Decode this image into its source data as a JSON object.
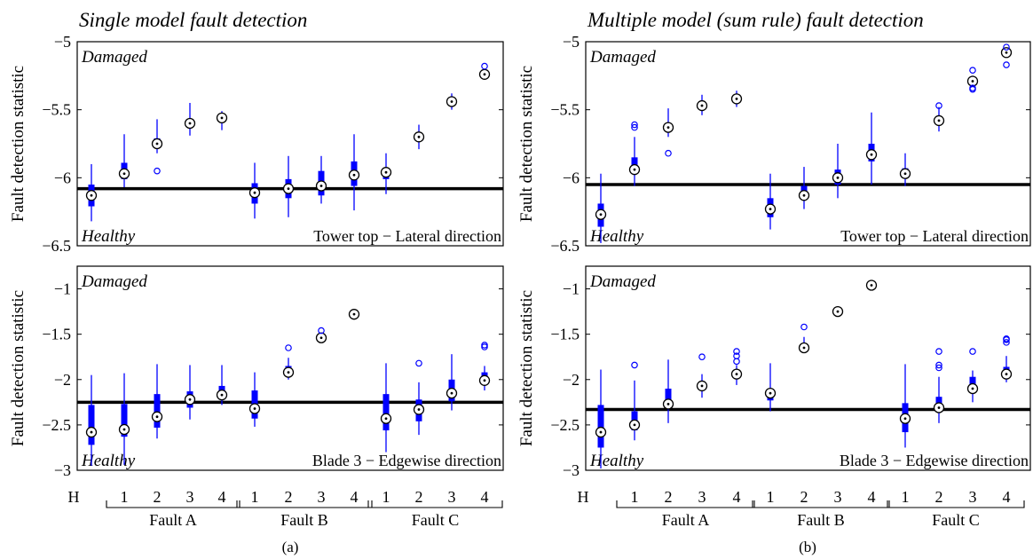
{
  "chart_data": [
    {
      "type": "boxplot",
      "title": "Single model fault detection",
      "ylabel": "Fault detection statistic",
      "corner_top": "Damaged",
      "corner_bottom": "Healthy",
      "panel_label": "Tower top − Lateral direction",
      "ylim": [
        -6.5,
        -5.0
      ],
      "yticks": [
        -6.5,
        -6,
        -5.5,
        -5
      ],
      "ytick_labels": [
        "-6.5",
        "-6",
        "-5.5",
        "-5"
      ],
      "threshold": -6.08,
      "boxes": [
        {
          "med": -6.13,
          "q1": -6.21,
          "q3": -6.05,
          "lo": -6.32,
          "hi": -5.9,
          "out": []
        },
        {
          "med": -5.97,
          "q1": -6.01,
          "q3": -5.89,
          "lo": -6.07,
          "hi": -5.68,
          "out": []
        },
        {
          "med": -5.75,
          "q1": -5.78,
          "q3": -5.71,
          "lo": -5.82,
          "hi": -5.57,
          "out": [
            -5.95
          ]
        },
        {
          "med": -5.6,
          "q1": -5.63,
          "q3": -5.58,
          "lo": -5.69,
          "hi": -5.45,
          "out": []
        },
        {
          "med": -5.56,
          "q1": -5.58,
          "q3": -5.55,
          "lo": -5.65,
          "hi": -5.51,
          "out": []
        },
        {
          "med": -6.11,
          "q1": -6.19,
          "q3": -6.04,
          "lo": -6.3,
          "hi": -5.89,
          "out": []
        },
        {
          "med": -6.08,
          "q1": -6.15,
          "q3": -6.01,
          "lo": -6.29,
          "hi": -5.84,
          "out": []
        },
        {
          "med": -6.06,
          "q1": -6.13,
          "q3": -5.95,
          "lo": -6.19,
          "hi": -5.84,
          "out": []
        },
        {
          "med": -5.98,
          "q1": -6.06,
          "q3": -5.88,
          "lo": -6.24,
          "hi": -5.68,
          "out": []
        },
        {
          "med": -5.96,
          "q1": -6.01,
          "q3": -5.94,
          "lo": -6.12,
          "hi": -5.82,
          "out": []
        },
        {
          "med": -5.7,
          "q1": -5.71,
          "q3": -5.69,
          "lo": -5.79,
          "hi": -5.61,
          "out": []
        },
        {
          "med": -5.44,
          "q1": -5.45,
          "q3": -5.43,
          "lo": -5.5,
          "hi": -5.38,
          "out": []
        },
        {
          "med": -5.24,
          "q1": -5.25,
          "q3": -5.23,
          "lo": -5.27,
          "hi": -5.2,
          "out": [
            -5.18
          ]
        }
      ]
    },
    {
      "type": "boxplot",
      "title": "",
      "ylabel": "Fault detection statistic",
      "corner_top": "Damaged",
      "corner_bottom": "Healthy",
      "panel_label": "Blade 3 − Edgewise direction",
      "ylim": [
        -3.0,
        -0.75
      ],
      "yticks": [
        -3,
        -2.5,
        -2,
        -1.5,
        -1
      ],
      "ytick_labels": [
        "-3",
        "-2.5",
        "-2",
        "-1.5",
        "-1"
      ],
      "threshold": -2.25,
      "boxes": [
        {
          "med": -2.58,
          "q1": -2.72,
          "q3": -2.28,
          "lo": -2.95,
          "hi": -1.95,
          "out": []
        },
        {
          "med": -2.55,
          "q1": -2.63,
          "q3": -2.27,
          "lo": -2.94,
          "hi": -1.93,
          "out": []
        },
        {
          "med": -2.41,
          "q1": -2.53,
          "q3": -2.16,
          "lo": -2.65,
          "hi": -1.83,
          "out": []
        },
        {
          "med": -2.22,
          "q1": -2.31,
          "q3": -2.13,
          "lo": -2.44,
          "hi": -1.84,
          "out": []
        },
        {
          "med": -2.17,
          "q1": -2.22,
          "q3": -2.07,
          "lo": -2.28,
          "hi": -1.84,
          "out": []
        },
        {
          "med": -2.32,
          "q1": -2.43,
          "q3": -2.12,
          "lo": -2.52,
          "hi": -1.92,
          "out": []
        },
        {
          "med": -1.92,
          "q1": -1.96,
          "q3": -1.85,
          "lo": -2.0,
          "hi": -1.76,
          "out": [
            -1.65
          ]
        },
        {
          "med": -1.54,
          "q1": -1.55,
          "q3": -1.53,
          "lo": -1.56,
          "hi": -1.52,
          "out": [
            -1.46
          ]
        },
        {
          "med": -1.28,
          "q1": -1.29,
          "q3": -1.27,
          "lo": -1.3,
          "hi": -1.26,
          "out": []
        },
        {
          "med": -2.43,
          "q1": -2.56,
          "q3": -2.16,
          "lo": -2.8,
          "hi": -1.82,
          "out": []
        },
        {
          "med": -2.33,
          "q1": -2.46,
          "q3": -2.22,
          "lo": -2.61,
          "hi": -2.03,
          "out": [
            -1.82
          ]
        },
        {
          "med": -2.15,
          "q1": -2.24,
          "q3": -2.0,
          "lo": -2.34,
          "hi": -1.72,
          "out": []
        },
        {
          "med": -2.01,
          "q1": -2.03,
          "q3": -1.92,
          "lo": -2.12,
          "hi": -1.85,
          "out": [
            -1.62,
            -1.64
          ]
        }
      ]
    },
    {
      "type": "boxplot",
      "title": "Multiple model (sum rule) fault detection",
      "ylabel": "Fault detection statistic",
      "corner_top": "Damaged",
      "corner_bottom": "Healthy",
      "panel_label": "Tower top − Lateral direction",
      "ylim": [
        -6.5,
        -5.0
      ],
      "yticks": [
        -6.5,
        -6,
        -5.5,
        -5
      ],
      "ytick_labels": [
        "-6.5",
        "-6",
        "-5.5",
        "-5"
      ],
      "threshold": -6.05,
      "boxes": [
        {
          "med": -6.27,
          "q1": -6.36,
          "q3": -6.19,
          "lo": -6.48,
          "hi": -5.97,
          "out": []
        },
        {
          "med": -5.94,
          "q1": -5.97,
          "q3": -5.85,
          "lo": -6.06,
          "hi": -5.7,
          "out": [
            -5.61,
            -5.63
          ]
        },
        {
          "med": -5.63,
          "q1": -5.66,
          "q3": -5.6,
          "lo": -5.7,
          "hi": -5.49,
          "out": [
            -5.82
          ]
        },
        {
          "med": -5.47,
          "q1": -5.49,
          "q3": -5.45,
          "lo": -5.54,
          "hi": -5.39,
          "out": []
        },
        {
          "med": -5.42,
          "q1": -5.44,
          "q3": -5.41,
          "lo": -5.48,
          "hi": -5.36,
          "out": []
        },
        {
          "med": -6.23,
          "q1": -6.29,
          "q3": -6.15,
          "lo": -6.38,
          "hi": -5.97,
          "out": []
        },
        {
          "med": -6.13,
          "q1": -6.15,
          "q3": -6.06,
          "lo": -6.23,
          "hi": -5.92,
          "out": []
        },
        {
          "med": -6.0,
          "q1": -6.05,
          "q3": -5.94,
          "lo": -6.15,
          "hi": -5.75,
          "out": []
        },
        {
          "med": -5.83,
          "q1": -5.88,
          "q3": -5.75,
          "lo": -6.05,
          "hi": -5.52,
          "out": []
        },
        {
          "med": -5.97,
          "q1": -6.0,
          "q3": -5.93,
          "lo": -6.06,
          "hi": -5.82,
          "out": []
        },
        {
          "med": -5.58,
          "q1": -5.6,
          "q3": -5.55,
          "lo": -5.66,
          "hi": -5.48,
          "out": [
            -5.47
          ]
        },
        {
          "med": -5.29,
          "q1": -5.31,
          "q3": -5.27,
          "lo": -5.33,
          "hi": -5.25,
          "out": [
            -5.21,
            -5.34,
            -5.35
          ]
        },
        {
          "med": -5.08,
          "q1": -5.09,
          "q3": -5.07,
          "lo": -5.1,
          "hi": -5.06,
          "out": [
            -5.04,
            -5.17
          ]
        }
      ]
    },
    {
      "type": "boxplot",
      "title": "",
      "ylabel": "Fault detection statistic",
      "corner_top": "Damaged",
      "corner_bottom": "Healthy",
      "panel_label": "Blade 3 − Edgewise direction",
      "ylim": [
        -3.0,
        -0.75
      ],
      "yticks": [
        -3,
        -2.5,
        -2,
        -1.5,
        -1
      ],
      "ytick_labels": [
        "-3",
        "-2.5",
        "-2",
        "-1.5",
        "-1"
      ],
      "threshold": -2.33,
      "boxes": [
        {
          "med": -2.58,
          "q1": -2.75,
          "q3": -2.28,
          "lo": -2.98,
          "hi": -1.89,
          "out": []
        },
        {
          "med": -2.5,
          "q1": -2.56,
          "q3": -2.35,
          "lo": -2.67,
          "hi": -2.01,
          "out": [
            -1.84
          ]
        },
        {
          "med": -2.27,
          "q1": -2.32,
          "q3": -2.1,
          "lo": -2.48,
          "hi": -1.78,
          "out": []
        },
        {
          "med": -2.07,
          "q1": -2.11,
          "q3": -2.03,
          "lo": -2.2,
          "hi": -1.94,
          "out": [
            -1.75
          ]
        },
        {
          "med": -1.94,
          "q1": -1.96,
          "q3": -1.92,
          "lo": -2.06,
          "hi": -1.84,
          "out": [
            -1.74,
            -1.69,
            -1.8
          ]
        },
        {
          "med": -2.15,
          "q1": -2.23,
          "q3": -2.1,
          "lo": -2.35,
          "hi": -1.82,
          "out": []
        },
        {
          "med": -1.65,
          "q1": -1.67,
          "q3": -1.63,
          "lo": -1.7,
          "hi": -1.53,
          "out": [
            -1.42
          ]
        },
        {
          "med": -1.25,
          "q1": -1.26,
          "q3": -1.24,
          "lo": -1.27,
          "hi": -1.23,
          "out": []
        },
        {
          "med": -0.96,
          "q1": -0.97,
          "q3": -0.95,
          "lo": -0.98,
          "hi": -0.94,
          "out": []
        },
        {
          "med": -2.43,
          "q1": -2.58,
          "q3": -2.26,
          "lo": -2.75,
          "hi": -1.83,
          "out": []
        },
        {
          "med": -2.31,
          "q1": -2.36,
          "q3": -2.19,
          "lo": -2.48,
          "hi": -1.97,
          "out": [
            -1.69,
            -1.84,
            -1.87
          ]
        },
        {
          "med": -2.1,
          "q1": -2.14,
          "q3": -1.97,
          "lo": -2.25,
          "hi": -1.9,
          "out": [
            -1.69
          ]
        },
        {
          "med": -1.94,
          "q1": -1.97,
          "q3": -1.86,
          "lo": -2.03,
          "hi": -1.74,
          "out": [
            -1.56,
            -1.55,
            -1.59
          ]
        }
      ]
    }
  ],
  "xaxis": {
    "first_label": "H",
    "sub_labels": [
      "1",
      "2",
      "3",
      "4"
    ],
    "groups": [
      "Fault A",
      "Fault B",
      "Fault C"
    ]
  },
  "captions": [
    "(a)",
    "(b)"
  ],
  "colors": {
    "box": "#0000ff",
    "threshold": "#000000",
    "text": "#000000"
  }
}
